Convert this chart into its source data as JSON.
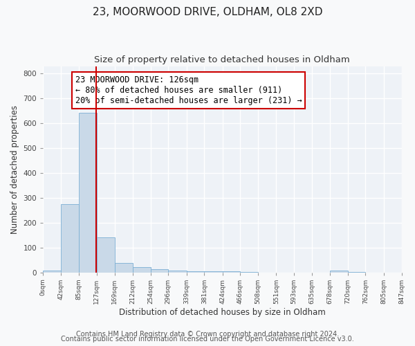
{
  "title1": "23, MOORWOOD DRIVE, OLDHAM, OL8 2XD",
  "title2": "Size of property relative to detached houses in Oldham",
  "xlabel": "Distribution of detached houses by size in Oldham",
  "ylabel": "Number of detached properties",
  "bar_color": "#c9d9e8",
  "bar_edge_color": "#7bafd4",
  "bg_color": "#eef2f7",
  "grid_color": "#ffffff",
  "marker_line_color": "#cc0000",
  "marker_value": 126,
  "annotation_title": "23 MOORWOOD DRIVE: 126sqm",
  "annotation_line1": "← 80% of detached houses are smaller (911)",
  "annotation_line2": "20% of semi-detached houses are larger (231) →",
  "bin_edges": [
    0,
    42,
    85,
    127,
    169,
    212,
    254,
    296,
    339,
    381,
    424,
    466,
    508,
    551,
    593,
    635,
    678,
    720,
    762,
    805,
    847
  ],
  "bin_counts": [
    8,
    275,
    641,
    140,
    38,
    20,
    12,
    8,
    5,
    3,
    5,
    1,
    0,
    0,
    0,
    0,
    6,
    1,
    0,
    0
  ],
  "xlim": [
    0,
    847
  ],
  "ylim": [
    0,
    830
  ],
  "yticks": [
    0,
    100,
    200,
    300,
    400,
    500,
    600,
    700,
    800
  ],
  "xtick_labels": [
    "0sqm",
    "42sqm",
    "85sqm",
    "127sqm",
    "169sqm",
    "212sqm",
    "254sqm",
    "296sqm",
    "339sqm",
    "381sqm",
    "424sqm",
    "466sqm",
    "508sqm",
    "551sqm",
    "593sqm",
    "635sqm",
    "678sqm",
    "720sqm",
    "762sqm",
    "805sqm",
    "847sqm"
  ],
  "footer1": "Contains HM Land Registry data © Crown copyright and database right 2024.",
  "footer2": "Contains public sector information licensed under the Open Government Licence v3.0.",
  "box_edge_color": "#cc0000",
  "title1_fontsize": 11,
  "title2_fontsize": 9.5,
  "annot_fontsize": 8.5,
  "footer_fontsize": 7
}
